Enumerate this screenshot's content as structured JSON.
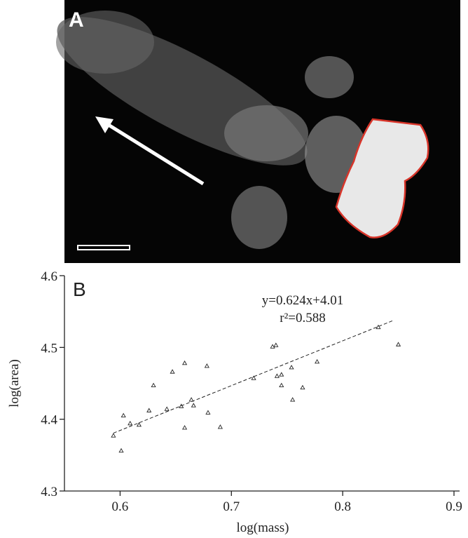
{
  "panel_a": {
    "label": "A"
  },
  "chart_data": {
    "type": "scatter",
    "panel_label": "B",
    "x_label": "log(mass)",
    "y_label": "log(area)",
    "annotations": [
      "y=0.624x+4.01",
      "r²=0.588"
    ],
    "x": [
      0.594,
      0.601,
      0.603,
      0.609,
      0.617,
      0.626,
      0.63,
      0.642,
      0.647,
      0.655,
      0.658,
      0.658,
      0.664,
      0.666,
      0.678,
      0.679,
      0.69,
      0.72,
      0.737,
      0.74,
      0.741,
      0.745,
      0.745,
      0.754,
      0.755,
      0.764,
      0.777,
      0.832,
      0.85
    ],
    "values": [
      4.377,
      4.356,
      4.405,
      4.394,
      4.392,
      4.412,
      4.447,
      4.414,
      4.466,
      4.418,
      4.388,
      4.478,
      4.427,
      4.419,
      4.474,
      4.409,
      4.389,
      4.457,
      4.501,
      4.503,
      4.46,
      4.462,
      4.447,
      4.472,
      4.427,
      4.444,
      4.48,
      4.528,
      4.504
    ],
    "trendline": {
      "slope": 0.624,
      "intercept": 4.01,
      "x_range": [
        0.594,
        0.845
      ]
    },
    "xlim": [
      0.55,
      0.9
    ],
    "xticks": [
      0.6,
      0.7,
      0.8,
      0.9
    ],
    "ylim": [
      4.3,
      4.6
    ],
    "yticks": [
      4.3,
      4.4,
      4.5,
      4.6
    ]
  }
}
